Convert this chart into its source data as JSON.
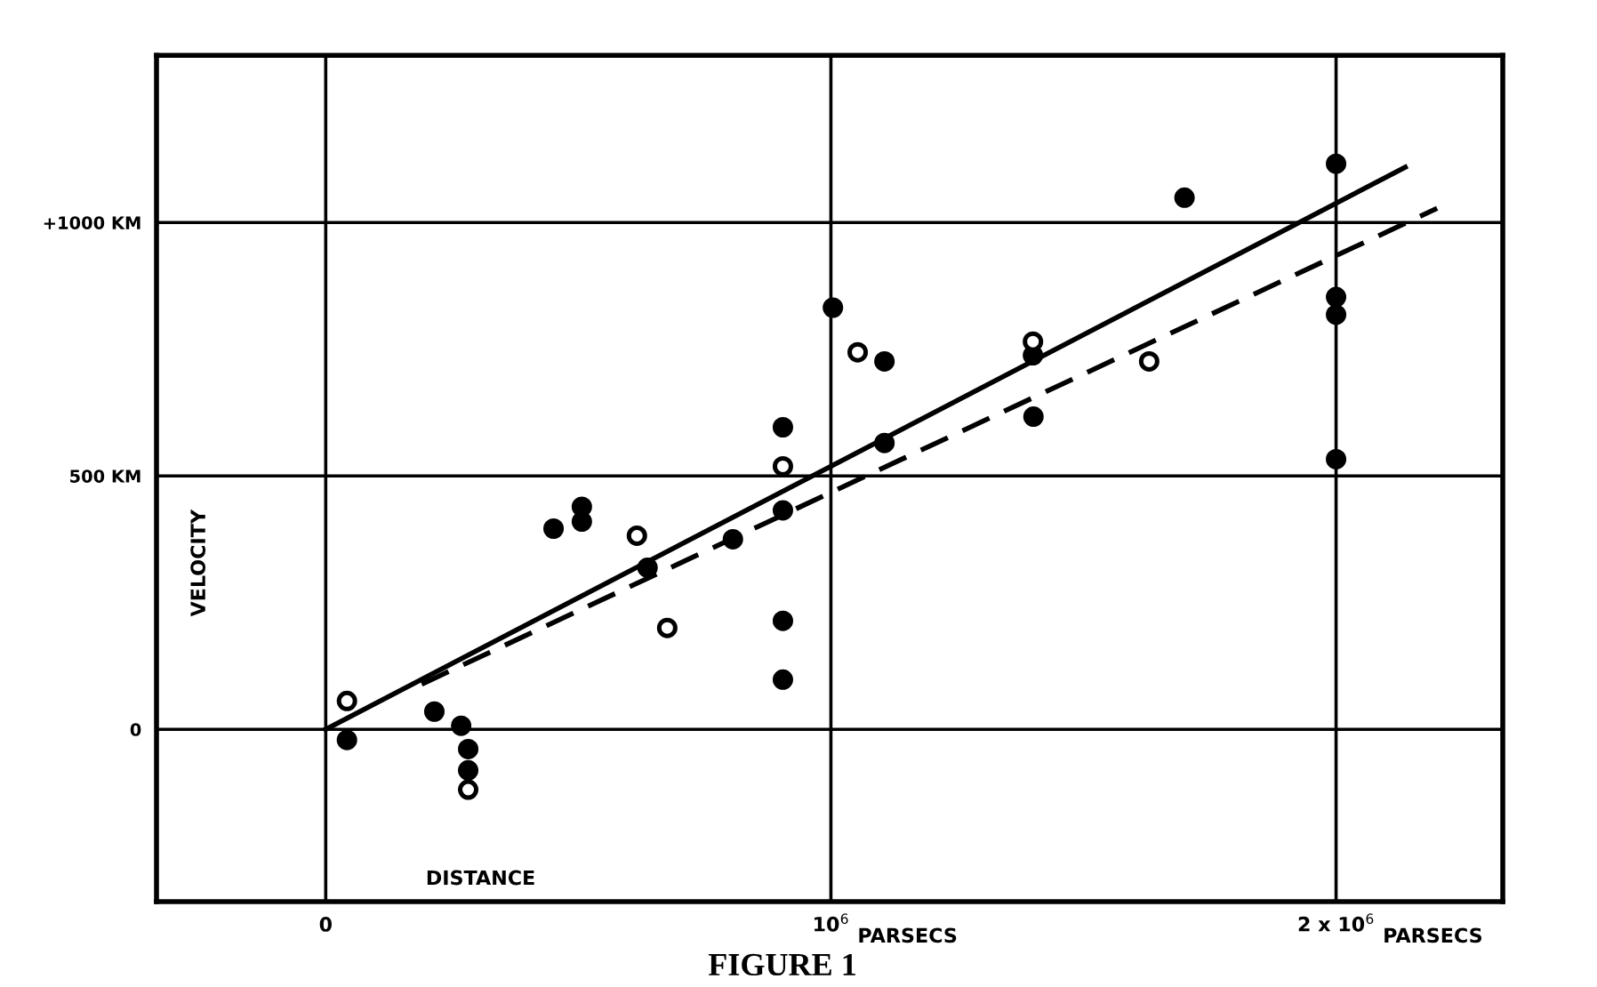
{
  "chart_data": {
    "type": "scatter",
    "title": "FIGURE 1",
    "xlabel": "DISTANCE",
    "ylabel": "VELOCITY",
    "xlim": [
      -335000,
      2330000
    ],
    "ylim": [
      -340,
      1330
    ],
    "xticks": [
      0,
      {
        "value": 1000000,
        "label": "10$^{6}$"
      },
      {
        "value": 2000000,
        "label": "2 x 10$^{6}$"
      }
    ],
    "annotations": [
      "PARSECS",
      "PARSECS"
    ],
    "yticks": [
      0,
      {
        "value": 500,
        "label": "500 KM"
      },
      {
        "value": 1000,
        "label": "+1000 KM"
      }
    ],
    "grid": true,
    "marker": "circle",
    "series": [
      {
        "color": "#000000",
        "x": [
          42000,
          215000,
          268000,
          282000,
          282000,
          451000,
          507000,
          507000,
          637000,
          806000,
          905000,
          905000,
          905000,
          905000,
          1004000,
          1106000,
          1106000,
          1400000,
          1401000,
          1700000,
          2000000,
          2000000,
          2000000,
          2000000
        ],
        "values": [
          -21,
          35,
          7,
          -39,
          -81,
          396,
          439,
          410,
          319,
          375,
          432,
          214,
          98,
          596,
          832,
          726,
          565,
          738,
          617,
          1049,
          1116,
          853,
          818,
          533
        ]
      },
      {
        "color": "#ffffff",
        "x": [
          42000,
          282000,
          616000,
          676000,
          905000,
          1053000,
          1400000,
          1630000
        ],
        "values": [
          56,
          -119,
          382,
          200,
          519,
          744,
          765,
          726
        ]
      },
      {
        "type": "line",
        "color": "#000000",
        "line_style": "solid",
        "marker": "none",
        "x": [
          0,
          2137000
        ],
        "values": [
          0,
          1109
        ]
      },
      {
        "type": "line",
        "color": "#000000",
        "line_style": "dashed",
        "marker": "none",
        "x": [
          190000,
          2200000
        ],
        "values": [
          89,
          1028
        ]
      }
    ]
  }
}
